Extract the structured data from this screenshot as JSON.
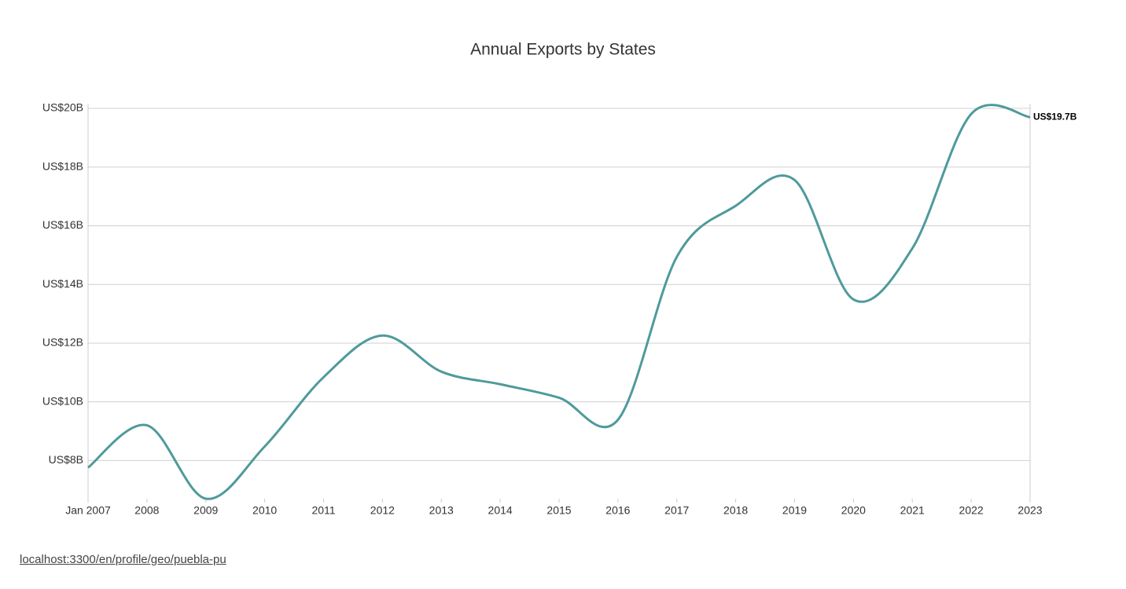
{
  "chart_data": {
    "type": "line",
    "title": "Annual Exports by States",
    "categories": [
      "Jan 2007",
      "2008",
      "2009",
      "2010",
      "2011",
      "2012",
      "2013",
      "2014",
      "2015",
      "2016",
      "2017",
      "2018",
      "2019",
      "2020",
      "2021",
      "2022",
      "2023"
    ],
    "series": [
      {
        "name": "Exports",
        "color": "#4f9a9b",
        "values": [
          7.76,
          9.2,
          6.7,
          8.48,
          10.84,
          12.26,
          11.03,
          10.6,
          10.14,
          9.39,
          14.94,
          16.68,
          17.56,
          13.49,
          15.23,
          19.81,
          19.7
        ],
        "value_labels": [
          null,
          null,
          null,
          null,
          null,
          null,
          null,
          null,
          null,
          null,
          null,
          null,
          null,
          null,
          null,
          null,
          "US$19.7B"
        ]
      }
    ],
    "ylim": [
      6.7,
      20
    ],
    "yticks": [
      {
        "value": 8,
        "label": "US$8B"
      },
      {
        "value": 10,
        "label": "US$10B"
      },
      {
        "value": 12,
        "label": "US$12B"
      },
      {
        "value": 14,
        "label": "US$14B"
      },
      {
        "value": 16,
        "label": "US$16B"
      },
      {
        "value": 18,
        "label": "US$18B"
      },
      {
        "value": 20,
        "label": "US$20B"
      }
    ],
    "grid": true
  },
  "footer": {
    "link": "localhost:3300/en/profile/geo/puebla-pu"
  }
}
